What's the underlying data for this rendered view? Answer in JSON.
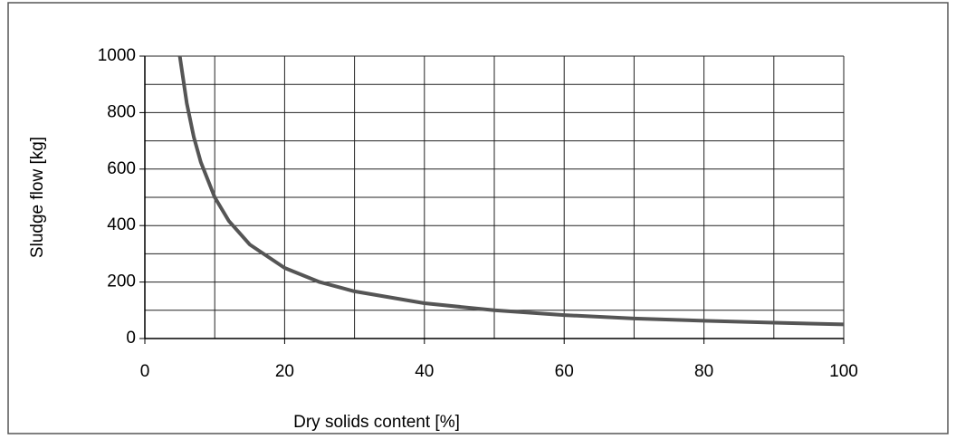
{
  "chart_data": {
    "type": "line",
    "x_label": "Dry solids content [%]",
    "y_label": "Sludge flow [kg]",
    "x": [
      5,
      6,
      7,
      8,
      10,
      12,
      15,
      20,
      25,
      30,
      40,
      50,
      60,
      70,
      80,
      90,
      100
    ],
    "series": [
      {
        "name": "Sludge flow",
        "color": "#555555",
        "values": [
          1000,
          833,
          714,
          625,
          500,
          417,
          333,
          250,
          200,
          167,
          125,
          100,
          83,
          71,
          63,
          56,
          50
        ]
      }
    ],
    "xlim": [
      0,
      100
    ],
    "xticks": [
      0,
      20,
      40,
      60,
      80,
      100
    ],
    "ylim": [
      0,
      1000
    ],
    "yticks": [
      0,
      200,
      400,
      600,
      800,
      1000
    ],
    "xgrid": [
      10,
      20,
      30,
      40,
      50,
      60,
      70,
      80,
      90,
      100
    ],
    "ygrid": [
      100,
      200,
      300,
      400,
      500,
      600,
      700,
      800,
      900,
      1000
    ],
    "grid": true
  }
}
